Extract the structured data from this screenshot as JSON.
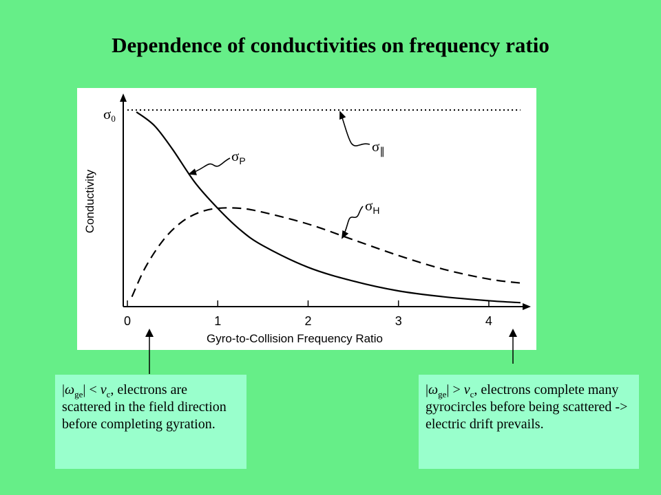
{
  "title": "Dependence of conductivities on frequency ratio",
  "chart_data": {
    "type": "line",
    "xlabel": "Gyro-to-Collision Frequency Ratio",
    "ylabel": "Conductivity",
    "xlim": [
      0,
      4.45
    ],
    "ylim": [
      0,
      1
    ],
    "x_ticks": [
      "0",
      "1",
      "2",
      "3",
      "4"
    ],
    "y_ticks": [
      "σ0"
    ],
    "grid": false,
    "series": [
      {
        "name": "σ∥",
        "style": "dotted",
        "x": [
          0,
          0.5,
          1,
          1.5,
          2,
          2.5,
          3,
          3.5,
          4,
          4.35
        ],
        "y": [
          1,
          1,
          1,
          1,
          1,
          1,
          1,
          1,
          1,
          1
        ]
      },
      {
        "name": "σP",
        "style": "solid",
        "x": [
          0.1,
          0.3,
          0.5,
          0.75,
          1,
          1.25,
          1.5,
          2,
          2.5,
          3,
          3.5,
          4,
          4.35
        ],
        "y": [
          0.99,
          0.92,
          0.8,
          0.63,
          0.5,
          0.39,
          0.31,
          0.2,
          0.13,
          0.08,
          0.05,
          0.03,
          0.02
        ]
      },
      {
        "name": "σH",
        "style": "dashed",
        "x": [
          0.05,
          0.2,
          0.4,
          0.6,
          0.8,
          1,
          1.25,
          1.5,
          2,
          2.5,
          3,
          3.5,
          4,
          4.35
        ],
        "y": [
          0.05,
          0.2,
          0.34,
          0.43,
          0.48,
          0.5,
          0.5,
          0.48,
          0.42,
          0.34,
          0.26,
          0.19,
          0.14,
          0.12
        ]
      }
    ],
    "annotations": [
      "σ∥",
      "σP",
      "σH"
    ]
  },
  "captions": {
    "left": {
      "symbol_omega": "ω",
      "omega_sub": "ge",
      "relation": " < ",
      "symbol_nu": "ν",
      "nu_sub": "c",
      "text": ", electrons are scattered in the field direction before completing gyration."
    },
    "right": {
      "symbol_omega": "ω",
      "omega_sub": "ge",
      "relation": " > ",
      "symbol_nu": "ν",
      "nu_sub": "c",
      "text": ", electrons complete many gyrocircles before being scattered -> electric drift prevails."
    }
  }
}
